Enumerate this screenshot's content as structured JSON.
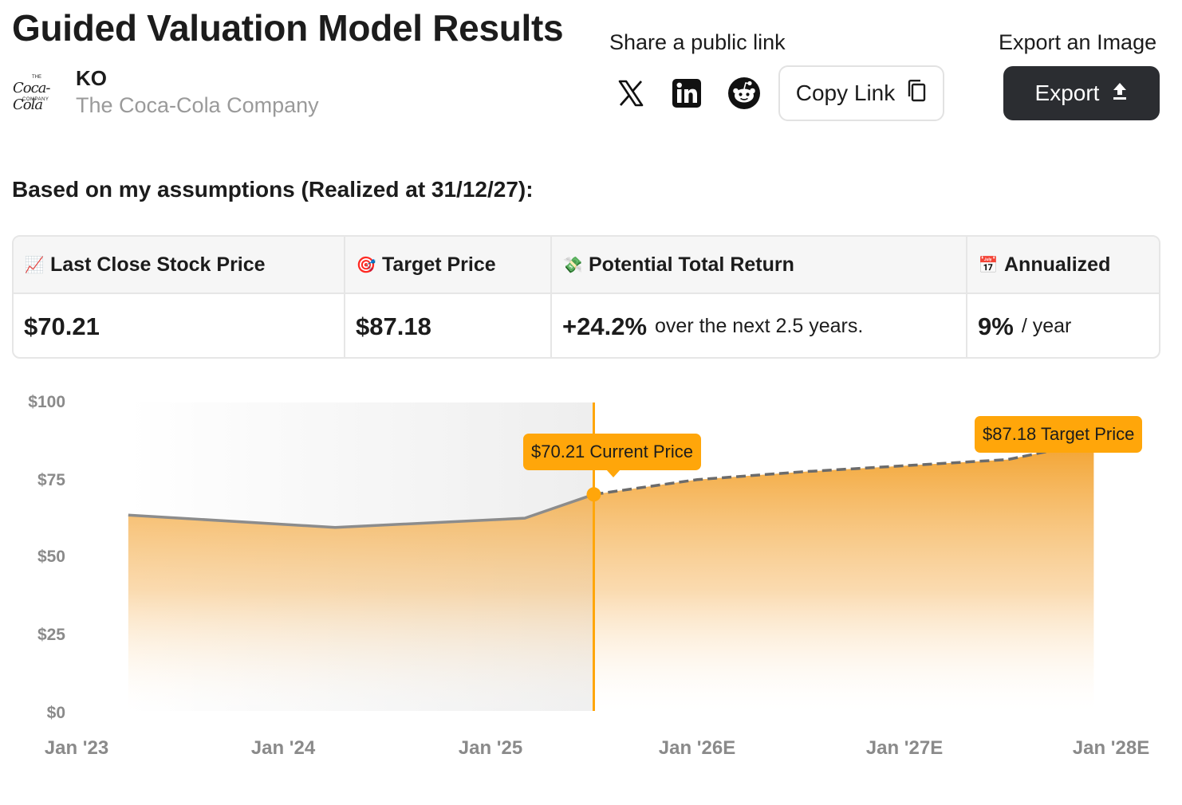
{
  "title": "Guided Valuation Model Results",
  "company": {
    "ticker": "KO",
    "name": "The Coca-Cola Company",
    "logo_top": "THE",
    "logo_script": "Coca-Cola",
    "logo_bottom": "COMPANY"
  },
  "share": {
    "label": "Share a public link",
    "copy_label": "Copy Link"
  },
  "export": {
    "label": "Export an Image",
    "button_label": "Export"
  },
  "assumptions_text": "Based on my assumptions (Realized at 31/12/27):",
  "results": {
    "last_close": {
      "emoji": "📈",
      "label": "Last Close Stock Price",
      "value": "$70.21"
    },
    "target": {
      "emoji": "🎯",
      "label": "Target Price",
      "value": "$87.18"
    },
    "total_return": {
      "emoji": "💸",
      "label": "Potential Total Return",
      "value": "+24.2%",
      "suffix": "over the next 2.5 years."
    },
    "annualized": {
      "emoji": "📅",
      "label": "Annualized",
      "value": "9%",
      "suffix": "/ year"
    }
  },
  "colors": {
    "accent": "#ffa60a",
    "dark_button": "#2b2d31",
    "history_line": "#8c8c8c",
    "axis_text": "#8a8a8a"
  },
  "chart_data": {
    "type": "area",
    "y_tick_labels": [
      "$100",
      "$75",
      "$50",
      "$25",
      "$0"
    ],
    "x_tick_labels": [
      "Jan '23",
      "Jan '24",
      "Jan '25",
      "Jan '26E",
      "Jan '27E",
      "Jan '28E"
    ],
    "ylim": [
      0,
      100
    ],
    "series": [
      {
        "values": [
          {
            "x": "2023-04",
            "y": 63.5
          },
          {
            "x": "2024-04",
            "y": 59.5
          },
          {
            "x": "2025-03",
            "y": 62.5
          },
          {
            "x": "2025-07",
            "y": 70.21
          }
        ]
      },
      {
        "values": [
          {
            "x": "2025-07",
            "y": 70.21
          },
          {
            "x": "2026-01",
            "y": 75
          },
          {
            "x": "2026-07",
            "y": 77.5
          },
          {
            "x": "2027-07",
            "y": 81.5
          },
          {
            "x": "2027-12",
            "y": 87.18
          }
        ]
      }
    ],
    "annotations": {
      "current": {
        "label": "$70.21 Current Price",
        "x": "2025-07",
        "y": 70.21
      },
      "target": {
        "label": "$87.18 Target Price",
        "x": "2027-12",
        "y": 87.18
      }
    }
  }
}
